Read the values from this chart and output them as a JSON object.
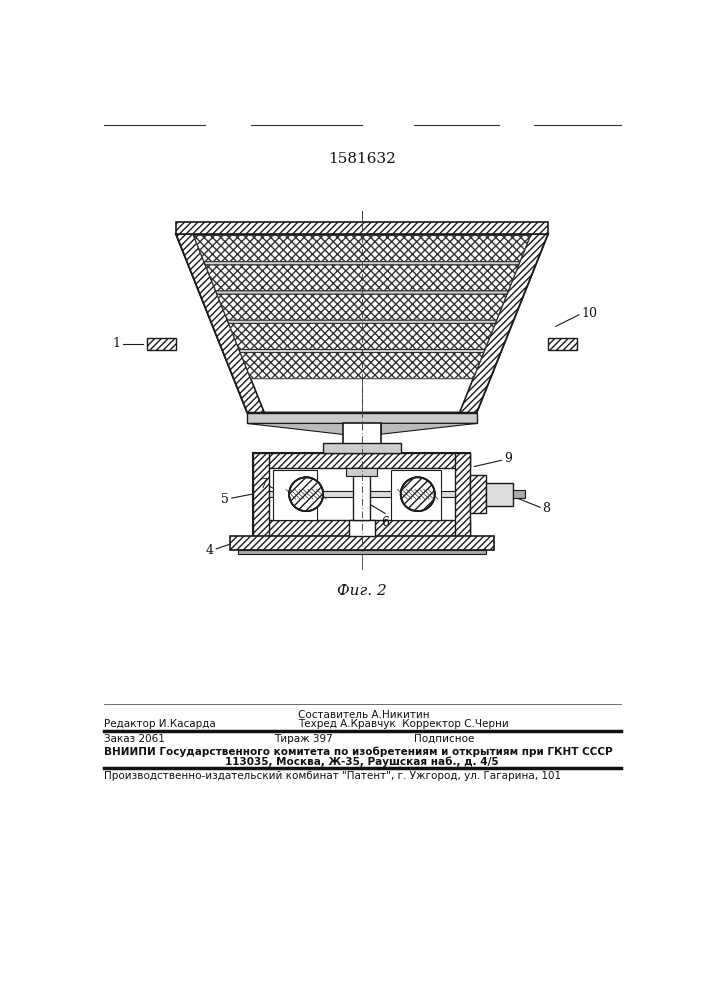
{
  "patent_number": "1581632",
  "fig_label": "Фиг. 2",
  "bg_color": "#ffffff",
  "drawing_color": "#1a1a1a",
  "footer_line1_col1": "Редактор И.Касарда",
  "footer_line1_col2": "Составитель А.Никитин",
  "footer_line1_col3": "Техред А.Кравчук  Корректор С.Черни",
  "footer_line2_col1": "Заказ 2061",
  "footer_line2_col2": "Тираж 397",
  "footer_line2_col3": "Подписное",
  "footer_line3": "ВНИИПИ Государственного комитета по изобретениям и открытиям при ГКНТ СССР",
  "footer_line4": "113035, Москва, Ж-35, Раушская наб., д. 4/5",
  "footer_line5": "Производственно-издательский комбинат \"Патент\", г. Ужгород, ул. Гагарина, 101"
}
